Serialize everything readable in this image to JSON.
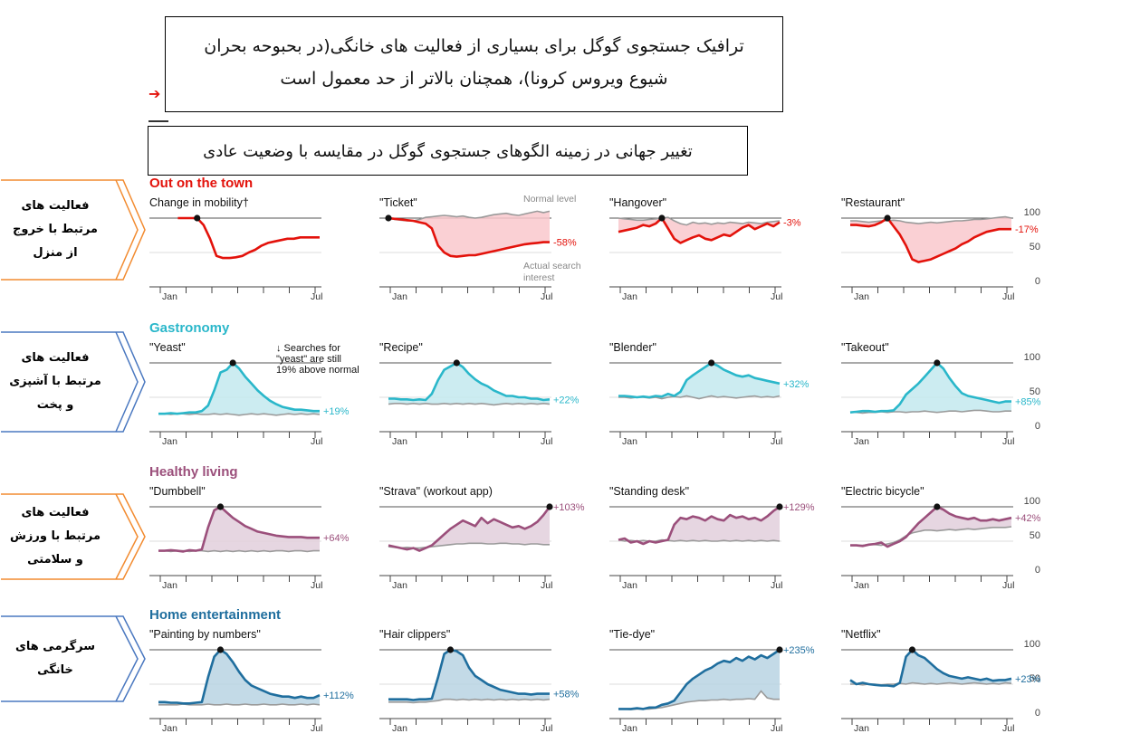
{
  "header": {
    "title": "ترافیک جستجوی گوگل برای بسیاری از فعالیت های خانگی(در بحبوحه بحران شیوع ویروس کرونا)، همچنان بالاتر از حد معمول است",
    "subtitle": "تغییر جهانی در زمینه الگوهای جستجوی گوگل در مقایسه با وضعیت عادی"
  },
  "side_labels": [
    {
      "text": "فعالیت های مرتبط با خروج از منزل",
      "color": "#f28b30"
    },
    {
      "text": "فعالیت های مرتبط با آشپزی و پخت",
      "color": "#4a78c0"
    },
    {
      "text": "فعالیت های مرتبط با ورزش و سلامتی",
      "color": "#f28b30"
    },
    {
      "text": "سرگرمی های خانگی",
      "color": "#4a78c0"
    }
  ],
  "chart_data": {
    "type": "line",
    "x_ticks": [
      "Jan",
      "Jul"
    ],
    "y_ticks": [
      0,
      50,
      100
    ],
    "ylim": [
      0,
      100
    ],
    "annotations": {
      "normal_level": "Normal level",
      "actual_search": "Actual search",
      "interest": "interest",
      "yeast_note": [
        "↓ Searches for",
        "\"yeast\" are still",
        "19% above normal"
      ]
    },
    "rows": [
      {
        "title": "Out on the town",
        "color": "#e3120b",
        "fill": "#f9c8cc",
        "panels": [
          {
            "label": "Change in mobility†",
            "end_label": "",
            "normal": null,
            "values": [
              null,
              null,
              null,
              100,
              100,
              100,
              100,
              90,
              70,
              45,
              42,
              42,
              43,
              45,
              50,
              54,
              60,
              64,
              66,
              68,
              70,
              70,
              72,
              72,
              72,
              72
            ]
          },
          {
            "label": "\"Ticket\"",
            "end_label": "-58%",
            "normal": [
              100,
              98,
              97,
              96,
              96,
              98,
              101,
              102,
              103,
              104,
              103,
              102,
              103,
              101,
              100,
              101,
              103,
              105,
              106,
              107,
              105,
              104,
              106,
              108,
              110,
              108,
              110
            ],
            "values": [
              100,
              99,
              98,
              97,
              96,
              94,
              92,
              85,
              60,
              50,
              45,
              44,
              45,
              46,
              46,
              48,
              50,
              52,
              54,
              56,
              58,
              60,
              62,
              63,
              64,
              65,
              65
            ]
          },
          {
            "label": "\"Hangover\"",
            "end_label": "-3%",
            "normal": [
              100,
              99,
              98,
              97,
              97,
              98,
              99,
              100,
              101,
              96,
              92,
              90,
              94,
              92,
              93,
              91,
              93,
              92,
              94,
              93,
              92,
              94,
              93,
              92,
              94,
              95,
              96
            ],
            "values": [
              80,
              82,
              84,
              86,
              90,
              88,
              92,
              100,
              85,
              70,
              64,
              68,
              72,
              75,
              70,
              68,
              72,
              76,
              74,
              80,
              86,
              90,
              84,
              88,
              92,
              88,
              94
            ]
          },
          {
            "label": "\"Restaurant\"",
            "end_label": "-17%",
            "normal": [
              96,
              96,
              95,
              94,
              95,
              96,
              96,
              97,
              96,
              94,
              93,
              92,
              93,
              94,
              93,
              94,
              95,
              96,
              96,
              97,
              98,
              98,
              99,
              100,
              101,
              102,
              100
            ],
            "values": [
              90,
              90,
              89,
              88,
              90,
              94,
              100,
              88,
              76,
              60,
              40,
              36,
              38,
              40,
              44,
              48,
              52,
              56,
              62,
              66,
              72,
              76,
              80,
              82,
              84,
              84,
              84
            ]
          }
        ]
      },
      {
        "title": "Gastronomy",
        "color": "#2ab7ca",
        "fill": "#c3e9ee",
        "panels": [
          {
            "label": "\"Yeast\"",
            "end_label": "+19%",
            "normal": [
              26,
              26,
              25,
              26,
              26,
              25,
              26,
              25,
              25,
              26,
              25,
              26,
              25,
              24,
              25,
              26,
              25,
              26,
              25,
              24,
              25,
              26,
              25,
              26,
              25,
              26,
              25
            ],
            "values": [
              26,
              26,
              27,
              26,
              27,
              28,
              28,
              30,
              38,
              60,
              86,
              90,
              100,
              92,
              80,
              70,
              60,
              52,
              45,
              40,
              36,
              34,
              32,
              32,
              31,
              30,
              30
            ]
          },
          {
            "label": "\"Recipe\"",
            "end_label": "+22%",
            "normal": [
              40,
              41,
              41,
              40,
              41,
              40,
              41,
              40,
              40,
              41,
              40,
              41,
              40,
              41,
              40,
              41,
              40,
              39,
              40,
              41,
              40,
              41,
              40,
              41,
              40,
              41,
              40
            ],
            "values": [
              48,
              48,
              47,
              47,
              46,
              47,
              46,
              55,
              75,
              90,
              95,
              100,
              94,
              84,
              76,
              70,
              66,
              60,
              56,
              52,
              52,
              50,
              50,
              48,
              48,
              46,
              47
            ]
          },
          {
            "label": "\"Blender\"",
            "end_label": "+32%",
            "normal": [
              50,
              50,
              49,
              50,
              50,
              49,
              50,
              48,
              50,
              51,
              50,
              52,
              50,
              48,
              50,
              52,
              50,
              51,
              50,
              49,
              50,
              51,
              52,
              50,
              51,
              50,
              52
            ],
            "values": [
              52,
              52,
              51,
              50,
              51,
              50,
              52,
              51,
              55,
              52,
              58,
              75,
              82,
              88,
              94,
              100,
              96,
              90,
              86,
              82,
              80,
              82,
              78,
              76,
              74,
              72,
              70
            ]
          },
          {
            "label": "\"Takeout\"",
            "end_label": "+85%",
            "normal": [
              28,
              28,
              27,
              28,
              28,
              29,
              28,
              29,
              29,
              28,
              29,
              29,
              30,
              29,
              28,
              29,
              30,
              30,
              29,
              30,
              31,
              31,
              30,
              29,
              29,
              30,
              30
            ],
            "values": [
              28,
              29,
              30,
              30,
              29,
              30,
              30,
              31,
              40,
              54,
              62,
              70,
              80,
              90,
              100,
              92,
              78,
              66,
              56,
              52,
              50,
              48,
              46,
              44,
              42,
              44,
              44
            ]
          }
        ]
      },
      {
        "title": "Healthy living",
        "color": "#9b4f7b",
        "fill": "#e2cfdc",
        "panels": [
          {
            "label": "\"Dumbbell\"",
            "end_label": "+64%",
            "normal": [
              36,
              36,
              35,
              36,
              36,
              35,
              36,
              36,
              35,
              36,
              35,
              36,
              35,
              36,
              35,
              36,
              35,
              36,
              35,
              36,
              36,
              35,
              36,
              36,
              35,
              36,
              36
            ],
            "values": [
              36,
              36,
              37,
              36,
              35,
              37,
              36,
              38,
              70,
              95,
              100,
              92,
              84,
              78,
              72,
              68,
              64,
              62,
              60,
              58,
              57,
              56,
              56,
              56,
              55,
              55,
              55
            ]
          },
          {
            "label": "\"Strava\" (workout app)",
            "end_label": "+103%",
            "normal": [
              42,
              41,
              40,
              41,
              40,
              40,
              41,
              42,
              43,
              44,
              45,
              46,
              46,
              47,
              47,
              47,
              46,
              46,
              47,
              47,
              46,
              46,
              45,
              46,
              46,
              45,
              45
            ],
            "values": [
              44,
              42,
              40,
              38,
              40,
              36,
              40,
              44,
              52,
              60,
              68,
              74,
              80,
              76,
              72,
              84,
              76,
              82,
              78,
              74,
              70,
              72,
              68,
              72,
              78,
              88,
              100
            ]
          },
          {
            "label": "\"Standing desk\"",
            "end_label": "+129%",
            "normal": [
              52,
              50,
              51,
              50,
              51,
              50,
              50,
              52,
              51,
              50,
              51,
              50,
              51,
              50,
              51,
              50,
              50,
              51,
              50,
              51,
              50,
              51,
              50,
              51,
              50,
              51,
              50
            ],
            "values": [
              52,
              54,
              48,
              50,
              46,
              50,
              48,
              50,
              52,
              74,
              84,
              82,
              86,
              84,
              80,
              86,
              82,
              80,
              88,
              84,
              86,
              82,
              84,
              80,
              86,
              94,
              100
            ]
          },
          {
            "label": "\"Electric bicycle\"",
            "end_label": "+42%",
            "normal": [
              44,
              44,
              44,
              45,
              45,
              44,
              46,
              48,
              52,
              58,
              62,
              64,
              66,
              66,
              65,
              66,
              67,
              66,
              67,
              68,
              67,
              68,
              69,
              70,
              70,
              70,
              71
            ],
            "values": [
              44,
              44,
              43,
              45,
              46,
              48,
              42,
              46,
              50,
              56,
              66,
              76,
              84,
              92,
              100,
              96,
              90,
              86,
              84,
              82,
              84,
              80,
              80,
              82,
              80,
              82,
              84
            ]
          }
        ]
      },
      {
        "title": "Home entertainment",
        "color": "#1f6e9e",
        "fill": "#b8d4e3",
        "panels": [
          {
            "label": "\"Painting by numbers\"",
            "end_label": "+112%",
            "normal": [
              20,
              20,
              20,
              20,
              21,
              20,
              20,
              20,
              21,
              20,
              20,
              21,
              20,
              20,
              21,
              20,
              20,
              21,
              20,
              20,
              21,
              20,
              20,
              21,
              20,
              21,
              20
            ],
            "values": [
              24,
              24,
              23,
              23,
              22,
              22,
              23,
              24,
              60,
              90,
              100,
              94,
              82,
              68,
              56,
              48,
              44,
              40,
              36,
              34,
              32,
              32,
              30,
              32,
              30,
              30,
              34
            ]
          },
          {
            "label": "\"Hair clippers\"",
            "end_label": "+58%",
            "normal": [
              24,
              24,
              24,
              24,
              23,
              24,
              24,
              25,
              26,
              28,
              28,
              27,
              28,
              27,
              28,
              27,
              28,
              27,
              28,
              27,
              28,
              27,
              28,
              27,
              28,
              27,
              28
            ],
            "values": [
              28,
              28,
              28,
              28,
              27,
              28,
              28,
              29,
              60,
              94,
              100,
              98,
              92,
              74,
              62,
              56,
              50,
              46,
              42,
              40,
              38,
              36,
              36,
              35,
              36,
              36,
              36
            ]
          },
          {
            "label": "\"Tie-dye\"",
            "end_label": "+235%",
            "normal": [
              14,
              14,
              13,
              14,
              14,
              14,
              15,
              16,
              18,
              20,
              22,
              24,
              25,
              26,
              26,
              27,
              27,
              28,
              27,
              28,
              28,
              29,
              28,
              40,
              30,
              28,
              28
            ],
            "values": [
              14,
              14,
              14,
              15,
              14,
              16,
              16,
              20,
              22,
              26,
              38,
              50,
              58,
              64,
              70,
              74,
              80,
              84,
              82,
              88,
              84,
              90,
              86,
              92,
              88,
              94,
              100
            ]
          },
          {
            "label": "\"Netflix\"",
            "end_label": "+23%",
            "normal": [
              50,
              50,
              49,
              50,
              50,
              49,
              50,
              50,
              51,
              50,
              52,
              51,
              50,
              51,
              50,
              51,
              52,
              51,
              50,
              51,
              52,
              51,
              50,
              51,
              50,
              52,
              51
            ],
            "values": [
              56,
              50,
              52,
              50,
              49,
              48,
              48,
              47,
              52,
              90,
              100,
              92,
              88,
              80,
              72,
              66,
              62,
              60,
              58,
              60,
              58,
              56,
              58,
              55,
              56,
              56,
              58
            ]
          }
        ]
      }
    ]
  }
}
